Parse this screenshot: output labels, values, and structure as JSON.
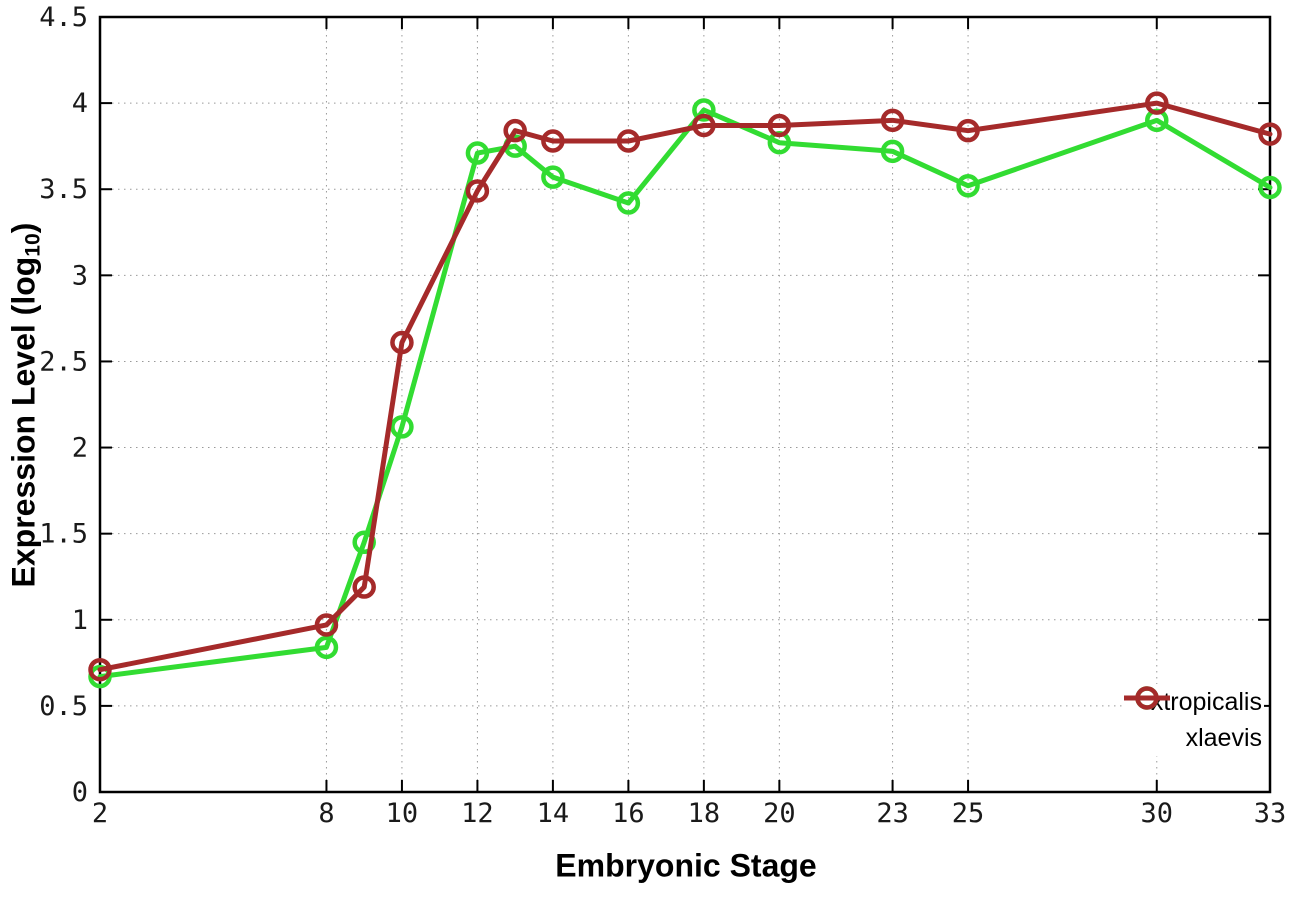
{
  "chart_data": {
    "type": "line",
    "title": "",
    "xlabel": "Embryonic Stage",
    "ylabel": "Expression Level (log10)",
    "ylabel_parts": {
      "main": "Expression Level (log",
      "sub": "10",
      "close": ")"
    },
    "x": [
      2,
      8,
      9,
      10,
      12,
      13,
      14,
      16,
      18,
      20,
      23,
      25,
      30,
      33
    ],
    "xticks": [
      2,
      8,
      10,
      12,
      14,
      16,
      18,
      20,
      23,
      25,
      30,
      33
    ],
    "yticks": [
      0,
      0.5,
      1,
      1.5,
      2,
      2.5,
      3,
      3.5,
      4,
      4.5
    ],
    "ytick_labels": [
      "0",
      "0.5",
      "1",
      "1.5",
      "2",
      "2.5",
      "3",
      "3.5",
      "4",
      "4.5"
    ],
    "xlim": [
      2,
      33
    ],
    "ylim": [
      0,
      4.5
    ],
    "grid": true,
    "marker": "open-circle",
    "legend_position": "inside-bottom-right",
    "series": [
      {
        "name": "xtropicalis",
        "color": "#32dc32",
        "values": [
          0.67,
          0.84,
          1.45,
          2.12,
          3.71,
          3.75,
          3.57,
          3.42,
          3.96,
          3.77,
          3.72,
          3.52,
          3.9,
          3.51
        ]
      },
      {
        "name": "xlaevis",
        "color": "#a52a2a",
        "values": [
          0.71,
          0.97,
          1.19,
          2.61,
          3.49,
          3.84,
          3.78,
          3.78,
          3.87,
          3.87,
          3.9,
          3.84,
          4.0,
          3.82
        ]
      }
    ]
  },
  "colors": {
    "background": "#ffffff",
    "axis": "#000000",
    "grid": "#999999",
    "tick_text": "#1a1a1a"
  }
}
